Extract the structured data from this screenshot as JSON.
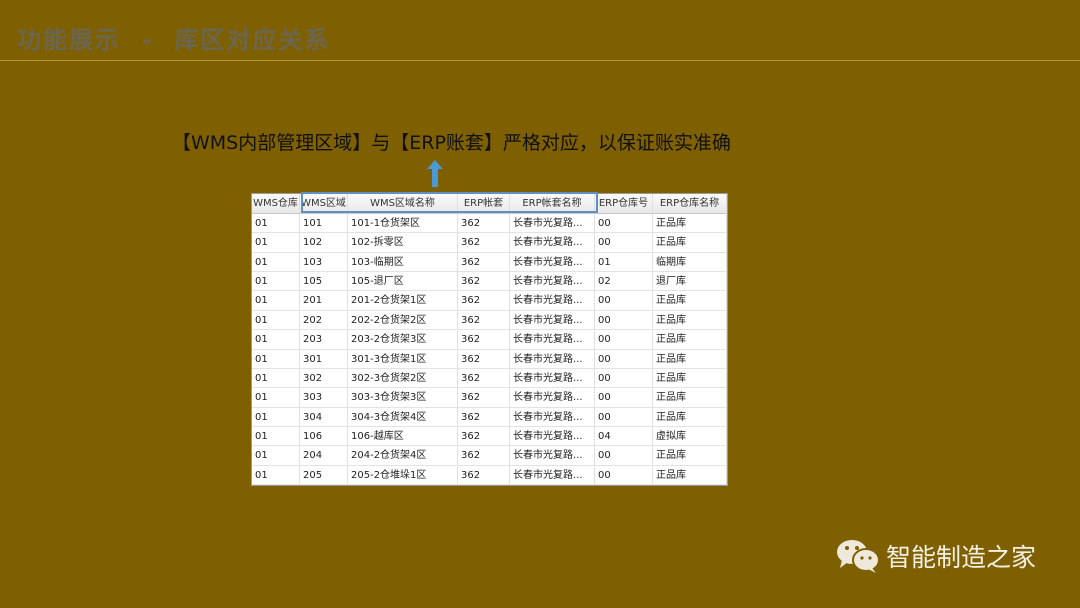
{
  "slide": {
    "title": "功能展示  -  库区对应关系",
    "subtitle": "【WMS内部管理区域】与【ERP账套】严格对应，以保证账实准确",
    "accent": "#5f8fc8",
    "background": "#7f6000"
  },
  "table": {
    "headers": [
      "WMS仓库",
      "WMS区域",
      "WMS区域名称",
      "ERP帐套",
      "ERP帐套名称",
      "ERP仓库号",
      "ERP仓库名称"
    ],
    "rows": [
      [
        "01",
        "101",
        "101-1仓货架区",
        "362",
        "长春市光复路...",
        "00",
        "正品库"
      ],
      [
        "01",
        "102",
        "102-拆零区",
        "362",
        "长春市光复路...",
        "00",
        "正品库"
      ],
      [
        "01",
        "103",
        "103-临期区",
        "362",
        "长春市光复路...",
        "01",
        "临期库"
      ],
      [
        "01",
        "105",
        "105-退厂区",
        "362",
        "长春市光复路...",
        "02",
        "退厂库"
      ],
      [
        "01",
        "201",
        "201-2仓货架1区",
        "362",
        "长春市光复路...",
        "00",
        "正品库"
      ],
      [
        "01",
        "202",
        "202-2仓货架2区",
        "362",
        "长春市光复路...",
        "00",
        "正品库"
      ],
      [
        "01",
        "203",
        "203-2仓货架3区",
        "362",
        "长春市光复路...",
        "00",
        "正品库"
      ],
      [
        "01",
        "301",
        "301-3仓货架1区",
        "362",
        "长春市光复路...",
        "00",
        "正品库"
      ],
      [
        "01",
        "302",
        "302-3仓货架2区",
        "362",
        "长春市光复路...",
        "00",
        "正品库"
      ],
      [
        "01",
        "303",
        "303-3仓货架3区",
        "362",
        "长春市光复路...",
        "00",
        "正品库"
      ],
      [
        "01",
        "304",
        "304-3仓货架4区",
        "362",
        "长春市光复路...",
        "00",
        "正品库"
      ],
      [
        "01",
        "106",
        "106-越库区",
        "362",
        "长春市光复路...",
        "04",
        "虚拟库"
      ],
      [
        "01",
        "204",
        "204-2仓货架4区",
        "362",
        "长春市光复路...",
        "00",
        "正品库"
      ],
      [
        "01",
        "205",
        "205-2仓堆垛1区",
        "362",
        "长春市光复路...",
        "00",
        "正品库"
      ]
    ]
  },
  "watermark": {
    "icon": "wechat-icon",
    "label": "智能制造之家"
  }
}
